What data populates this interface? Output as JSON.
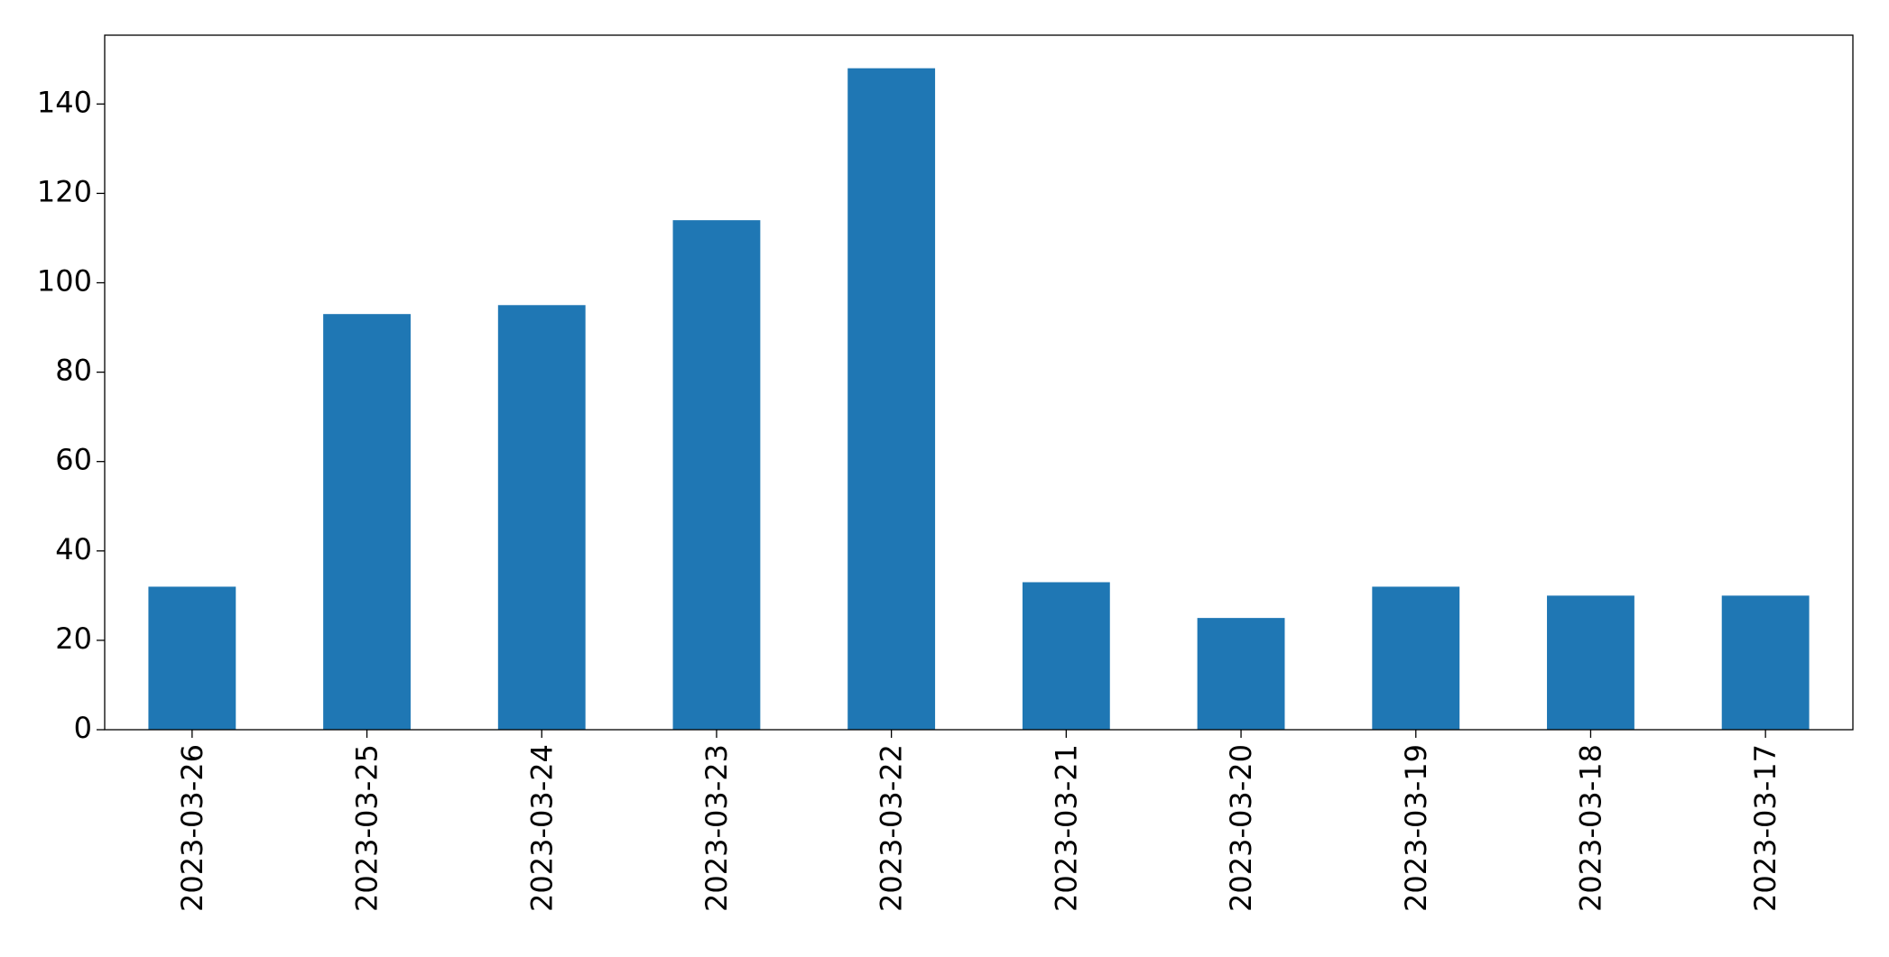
{
  "chart_data": {
    "type": "bar",
    "categories": [
      "2023-03-26",
      "2023-03-25",
      "2023-03-24",
      "2023-03-23",
      "2023-03-22",
      "2023-03-21",
      "2023-03-20",
      "2023-03-19",
      "2023-03-18",
      "2023-03-17"
    ],
    "values": [
      32,
      93,
      95,
      114,
      148,
      33,
      25,
      32,
      30,
      30
    ],
    "color": "#1f77b4",
    "ylim": [
      0,
      155.4
    ],
    "yticks": [
      0,
      20,
      40,
      60,
      80,
      100,
      120,
      140
    ],
    "grid": false
  }
}
